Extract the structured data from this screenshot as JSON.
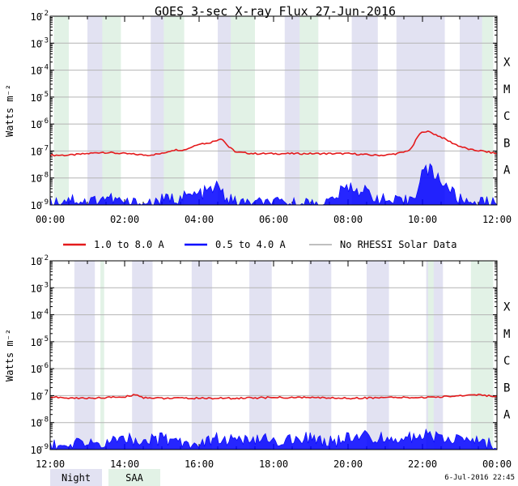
{
  "title": "GOES 3-sec X-ray Flux   27-Jun-2016",
  "ylabel": "Watts m⁻²",
  "y_ticks": [
    {
      "base": "10",
      "exp": "-9",
      "v": 1e-09
    },
    {
      "base": "10",
      "exp": "-8",
      "v": 1e-08
    },
    {
      "base": "10",
      "exp": "-7",
      "v": 1e-07
    },
    {
      "base": "10",
      "exp": "-6",
      "v": 1e-06
    },
    {
      "base": "10",
      "exp": "-5",
      "v": 1e-05
    },
    {
      "base": "10",
      "exp": "-4",
      "v": 0.0001
    },
    {
      "base": "10",
      "exp": "-3",
      "v": 0.001
    },
    {
      "base": "10",
      "exp": "-2",
      "v": 0.01
    }
  ],
  "flare_classes": [
    {
      "label": "A",
      "v": 2e-08
    },
    {
      "label": "B",
      "v": 2e-07
    },
    {
      "label": "C",
      "v": 2e-06
    },
    {
      "label": "M",
      "v": 2e-05
    },
    {
      "label": "X",
      "v": 0.0002
    }
  ],
  "legend": [
    {
      "label": "1.0 to 8.0 A",
      "color": "#e41a1c"
    },
    {
      "label": "0.5 to 4.0 A",
      "color": "#0000ff"
    },
    {
      "label": "No RHESSI Solar Data",
      "color": "#999999"
    }
  ],
  "bottom_legend": [
    {
      "label": "Night",
      "color": "#e2e2f2"
    },
    {
      "label": "SAA",
      "color": "#e2f2e6"
    }
  ],
  "footer": "6-Jul-2016 22:45",
  "colors": {
    "long_channel": "#e41a1c",
    "short_channel": "#0000ff",
    "no_rhessi": "#999999",
    "night": "#e2e2f2",
    "saa": "#e2f2e6",
    "grid": "#b4b4b4"
  },
  "chart_data": [
    {
      "type": "line",
      "panel": "top",
      "x_ticks": [
        "00:00",
        "02:00",
        "04:00",
        "06:00",
        "08:00",
        "10:00",
        "12:00"
      ],
      "xlim_hours": [
        0,
        12
      ],
      "ylim": [
        1e-09,
        0.01
      ],
      "y_scale": "log",
      "grid": true,
      "night_intervals_hours": [
        [
          1.0,
          1.8
        ],
        [
          2.7,
          3.5
        ],
        [
          4.5,
          5.4
        ],
        [
          6.3,
          7.2
        ],
        [
          8.1,
          8.8
        ],
        [
          9.3,
          10.6
        ],
        [
          11.0,
          11.9
        ]
      ],
      "saa_intervals_hours": [
        [
          0.1,
          0.5
        ],
        [
          1.4,
          1.9
        ],
        [
          3.05,
          3.6
        ],
        [
          4.85,
          5.5
        ],
        [
          6.7,
          7.2
        ],
        [
          11.6,
          11.9
        ]
      ],
      "series": [
        {
          "name": "1.0 to 8.0 A",
          "x": [
            0.0,
            0.5,
            1.0,
            1.4,
            2.0,
            2.6,
            3.0,
            3.3,
            3.6,
            3.8,
            4.0,
            4.2,
            4.4,
            4.6,
            4.8,
            5.0,
            5.5,
            6.0,
            7.0,
            8.0,
            8.7,
            9.0,
            9.3,
            9.5,
            9.7,
            9.9,
            10.05,
            10.2,
            10.5,
            10.8,
            11.0,
            11.3,
            11.6,
            12.0
          ],
          "y": [
            7e-08,
            7e-08,
            8e-08,
            9e-08,
            8e-08,
            7e-08,
            8e-08,
            1.1e-07,
            1.1e-07,
            1.4e-07,
            1.9e-07,
            1.9e-07,
            2.3e-07,
            3e-07,
            1.4e-07,
            9e-08,
            8e-08,
            8e-08,
            8e-08,
            8e-08,
            7e-08,
            7e-08,
            8e-08,
            9e-08,
            1.2e-07,
            4e-07,
            5.5e-07,
            5e-07,
            3.3e-07,
            2e-07,
            1.5e-07,
            1.1e-07,
            1e-07,
            8e-08
          ]
        },
        {
          "name": "0.5 to 4.0 A",
          "x": [
            0.0,
            0.5,
            1.0,
            1.5,
            2.0,
            2.5,
            3.0,
            3.5,
            4.0,
            4.3,
            4.5,
            4.7,
            5.0,
            6.0,
            7.0,
            7.5,
            8.0,
            8.5,
            9.0,
            9.5,
            9.8,
            10.0,
            10.2,
            10.4,
            10.6,
            10.8,
            11.0,
            12.0
          ],
          "y": [
            1.2e-09,
            1.8e-09,
            1.3e-09,
            2e-09,
            1.2e-09,
            1.1e-09,
            1.5e-09,
            1.9e-09,
            2.5e-09,
            3.5e-09,
            5e-09,
            2e-09,
            1.2e-09,
            1.1e-09,
            1.1e-09,
            1.3e-09,
            5e-09,
            3e-09,
            1.4e-09,
            1.2e-09,
            2.5e-09,
            1.9e-08,
            2e-08,
            1.1e-08,
            6e-09,
            3e-09,
            1.5e-09,
            1.1e-09
          ]
        }
      ]
    },
    {
      "type": "line",
      "panel": "bottom",
      "x_ticks": [
        "12:00",
        "14:00",
        "16:00",
        "18:00",
        "20:00",
        "22:00",
        "00:00"
      ],
      "xlim_hours": [
        12,
        24
      ],
      "ylim": [
        1e-09,
        0.01
      ],
      "y_scale": "log",
      "grid": true,
      "night_intervals_hours": [
        [
          12.65,
          13.2
        ],
        [
          14.2,
          14.75
        ],
        [
          15.8,
          16.35
        ],
        [
          17.35,
          17.95
        ],
        [
          18.95,
          19.55
        ],
        [
          20.5,
          21.1
        ],
        [
          22.1,
          22.55
        ]
      ],
      "saa_intervals_hours": [
        [
          13.35,
          13.45
        ],
        [
          22.15,
          22.3
        ],
        [
          23.3,
          23.9
        ]
      ],
      "series": [
        {
          "name": "1.0 to 8.0 A",
          "x": [
            12.0,
            12.5,
            13.0,
            13.5,
            14.0,
            14.3,
            14.5,
            15.0,
            16.0,
            17.0,
            18.0,
            19.0,
            20.0,
            21.0,
            22.0,
            22.5,
            23.0,
            23.5,
            24.0
          ],
          "y": [
            9e-08,
            8e-08,
            8e-08,
            8.5e-08,
            9e-08,
            1.1e-07,
            8.5e-08,
            8e-08,
            8e-08,
            8e-08,
            8.5e-08,
            8.5e-08,
            8e-08,
            8.5e-08,
            8.5e-08,
            9e-08,
            1e-07,
            1.1e-07,
            9e-08
          ]
        },
        {
          "name": "0.5 to 4.0 A",
          "x": [
            12.0,
            12.5,
            13.0,
            13.5,
            14.0,
            14.5,
            15.0,
            15.5,
            16.0,
            16.5,
            17.0,
            17.5,
            18.0,
            18.5,
            19.0,
            19.5,
            20.0,
            20.5,
            21.0,
            21.5,
            22.0,
            22.5,
            23.0,
            23.5,
            24.0
          ],
          "y": [
            1.5e-09,
            1.2e-09,
            2.2e-09,
            1.5e-09,
            3e-09,
            2e-09,
            2.5e-09,
            2e-09,
            1.8e-09,
            2.5e-09,
            2.2e-09,
            2e-09,
            2.5e-09,
            2e-09,
            2.8e-09,
            2e-09,
            2.5e-09,
            3e-09,
            2.5e-09,
            3e-09,
            3.2e-09,
            3e-09,
            2.5e-09,
            2e-09,
            1.5e-09
          ]
        }
      ]
    }
  ]
}
